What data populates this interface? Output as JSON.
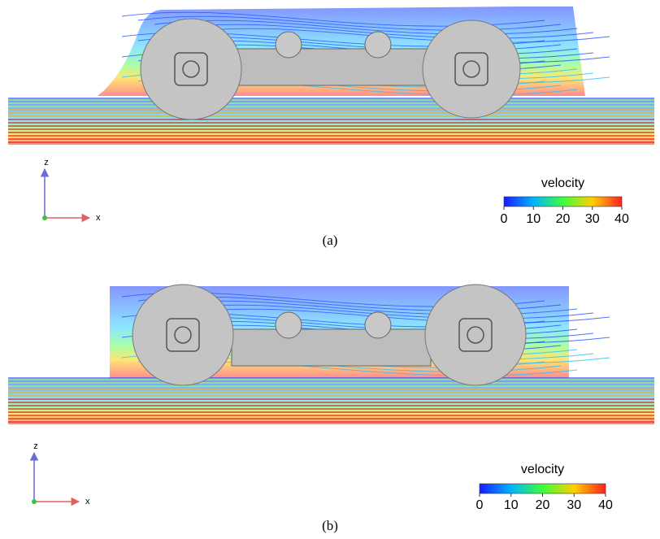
{
  "panels": [
    {
      "label": "(a)",
      "legend": {
        "title": "velocity",
        "ticks": [
          0,
          10,
          20,
          30,
          40
        ]
      },
      "axes": {
        "vertical": "z",
        "horizontal": "x"
      }
    },
    {
      "label": "(b)",
      "legend": {
        "title": "velocity",
        "ticks": [
          0,
          10,
          20,
          30,
          40
        ]
      },
      "axes": {
        "vertical": "z",
        "horizontal": "x"
      }
    }
  ]
}
